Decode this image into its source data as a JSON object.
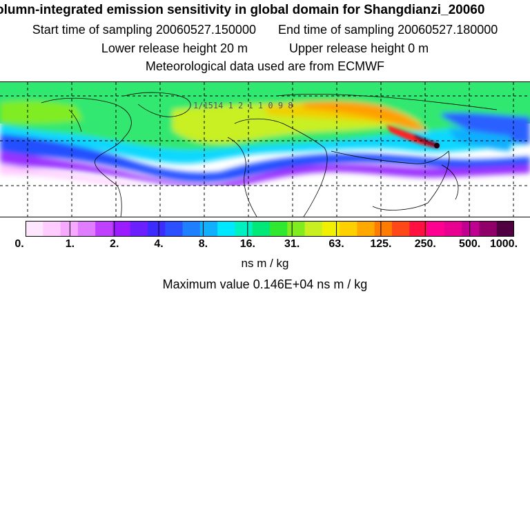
{
  "title": "olumn-integrated emission sensitivity in global domain for Shangdianzi_20060",
  "sampling": {
    "start_label": "Start time of sampling",
    "start_value": "20060527.150000",
    "end_label": "End time of sampling",
    "end_value": "20060527.180000"
  },
  "release": {
    "lower_label": "Lower release height",
    "lower_value": "20 m",
    "upper_label": "Upper release height",
    "upper_value": "0 m"
  },
  "met_data": "Meteorological data used are from ECMWF",
  "trajectory_labels": "1/1514 1 2 1 1 0    9  8",
  "colorbar": {
    "ticks": [
      "0.",
      "1.",
      "2.",
      "4.",
      "8.",
      "16.",
      "31.",
      "63.",
      "125.",
      "250.",
      "500.",
      "1000."
    ],
    "units": "ns m / kg",
    "colors": [
      "#ffe6ff",
      "#ffccff",
      "#f5aaff",
      "#e07cff",
      "#c040ff",
      "#9a1cff",
      "#6a20ff",
      "#3c2cff",
      "#2a50ff",
      "#1f80ff",
      "#10b0ff",
      "#00e8ff",
      "#00f0c0",
      "#00e878",
      "#30e830",
      "#80ec20",
      "#c8f020",
      "#f0f000",
      "#ffd000",
      "#ffa800",
      "#ff7c00",
      "#ff4818",
      "#ff1040",
      "#ff0090",
      "#e80090",
      "#c00090",
      "#900068",
      "#500040"
    ]
  },
  "maximum": {
    "label": "Maximum value",
    "value": "0.146E+04 ns m / kg"
  },
  "map_colors": {
    "purple": "#8a20ff",
    "blue": "#2050ff",
    "cyan": "#10d8ff",
    "green": "#30e870",
    "yellow": "#e8f020",
    "orange": "#ffa000",
    "red": "#ff2020"
  }
}
